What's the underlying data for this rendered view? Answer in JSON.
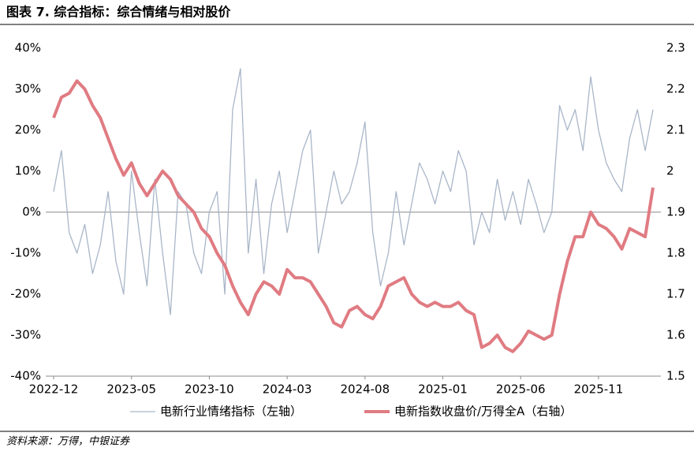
{
  "header": {
    "title": "图表 7. 综合指标：综合情绪与相对股价"
  },
  "chart_data": {
    "type": "line",
    "categories": [
      "2022-12",
      null,
      null,
      null,
      null,
      null,
      null,
      null,
      null,
      null,
      "2023-05",
      null,
      null,
      null,
      null,
      null,
      null,
      null,
      null,
      null,
      "2023-10",
      null,
      null,
      null,
      null,
      null,
      null,
      null,
      null,
      null,
      "2024-03",
      null,
      null,
      null,
      null,
      null,
      null,
      null,
      null,
      null,
      "2024-08",
      null,
      null,
      null,
      null,
      null,
      null,
      null,
      null,
      null,
      "2025-01",
      null,
      null,
      null,
      null,
      null,
      null,
      null,
      null,
      null,
      "2025-06",
      null,
      null,
      null,
      null,
      null,
      null,
      null,
      null,
      null,
      "2025-11",
      null,
      null,
      null,
      null,
      null,
      null,
      null
    ],
    "series": [
      {
        "name": "电新行业情绪指标（左轴）",
        "color": "#a9b6c8",
        "axis": "y",
        "values": [
          5,
          15,
          -5,
          -10,
          -3,
          -15,
          -8,
          5,
          -12,
          -20,
          10,
          -5,
          -18,
          8,
          -10,
          -25,
          5,
          2,
          -10,
          -15,
          0,
          5,
          -20,
          25,
          35,
          -10,
          8,
          -15,
          2,
          10,
          -5,
          5,
          15,
          20,
          -10,
          0,
          10,
          2,
          5,
          12,
          22,
          -5,
          -18,
          -10,
          5,
          -8,
          2,
          12,
          8,
          2,
          10,
          5,
          15,
          10,
          -8,
          0,
          -5,
          8,
          -2,
          5,
          -3,
          8,
          2,
          -5,
          0,
          26,
          20,
          25,
          15,
          33,
          20,
          12,
          8,
          5,
          18,
          25,
          15,
          25
        ]
      },
      {
        "name": "电新指数收盘价/万得全A（右轴）",
        "color": "#e07b82",
        "axis": "y2",
        "values": [
          2.13,
          2.18,
          2.19,
          2.22,
          2.2,
          2.16,
          2.13,
          2.08,
          2.03,
          1.99,
          2.02,
          1.97,
          1.94,
          1.97,
          2.0,
          1.98,
          1.94,
          1.92,
          1.9,
          1.86,
          1.84,
          1.8,
          1.77,
          1.72,
          1.68,
          1.65,
          1.7,
          1.73,
          1.72,
          1.7,
          1.76,
          1.74,
          1.74,
          1.73,
          1.7,
          1.67,
          1.63,
          1.62,
          1.66,
          1.67,
          1.65,
          1.64,
          1.67,
          1.72,
          1.73,
          1.74,
          1.7,
          1.68,
          1.67,
          1.68,
          1.67,
          1.67,
          1.68,
          1.66,
          1.65,
          1.57,
          1.58,
          1.6,
          1.57,
          1.56,
          1.58,
          1.61,
          1.6,
          1.59,
          1.6,
          1.7,
          1.78,
          1.84,
          1.84,
          1.9,
          1.87,
          1.86,
          1.84,
          1.81,
          1.86,
          1.85,
          1.84,
          1.96
        ]
      }
    ],
    "ylim": [
      -40,
      40
    ],
    "yticks": [
      {
        "value": -40,
        "label": "-40%"
      },
      {
        "value": -30,
        "label": "-30%"
      },
      {
        "value": -20,
        "label": "-20%"
      },
      {
        "value": -10,
        "label": "-10%"
      },
      {
        "value": 0,
        "label": "0%"
      },
      {
        "value": 10,
        "label": "10%"
      },
      {
        "value": 20,
        "label": "20%"
      },
      {
        "value": 30,
        "label": "30%"
      },
      {
        "value": 40,
        "label": "40%"
      }
    ],
    "y2lim": [
      1.5,
      2.3
    ],
    "y2ticks": [
      1.5,
      1.6,
      1.7,
      1.8,
      1.9,
      2,
      2.1,
      2.2,
      2.3
    ],
    "legend": "bottom"
  },
  "footer": {
    "source": "资料来源：万得，中银证券"
  }
}
